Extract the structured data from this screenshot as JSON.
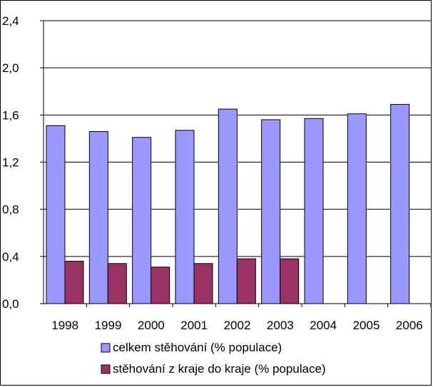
{
  "chart_data": {
    "type": "bar",
    "categories": [
      "1998",
      "1999",
      "2000",
      "2001",
      "2002",
      "2003",
      "2004",
      "2005",
      "2006"
    ],
    "series": [
      {
        "name": "celkem stěhování (% populace)",
        "color": "#9999ff",
        "values": [
          1.51,
          1.46,
          1.41,
          1.47,
          1.65,
          1.56,
          1.57,
          1.61,
          1.69
        ]
      },
      {
        "name": "stěhování z kraje do kraje (% populace)",
        "color": "#993366",
        "values": [
          0.36,
          0.34,
          0.31,
          0.34,
          0.38,
          0.38,
          null,
          null,
          null
        ]
      }
    ],
    "y_ticks": [
      "0,0",
      "0,4",
      "0,8",
      "1,2",
      "1,6",
      "2,0",
      "2,4"
    ],
    "ylim": [
      0,
      2.4
    ],
    "grid": true,
    "legend_position": "bottom",
    "title": "",
    "xlabel": "",
    "ylabel": ""
  }
}
